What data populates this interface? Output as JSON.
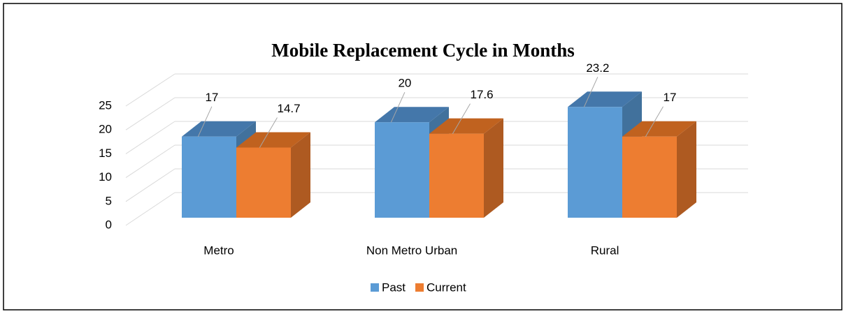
{
  "chart_data": {
    "type": "bar3d",
    "title": "Mobile Replacement  Cycle in Months",
    "categories": [
      "Metro",
      "Non Metro Urban",
      "Rural"
    ],
    "series": [
      {
        "name": "Past",
        "color": "#5b9bd5",
        "values": [
          17,
          20,
          23.2
        ]
      },
      {
        "name": "Current",
        "color": "#ed7d31",
        "values": [
          14.7,
          17.6,
          17
        ]
      }
    ],
    "ylim": [
      0,
      25
    ],
    "yticks": [
      0,
      5,
      10,
      15,
      20,
      25
    ],
    "grid": true,
    "legend": "bottom"
  }
}
